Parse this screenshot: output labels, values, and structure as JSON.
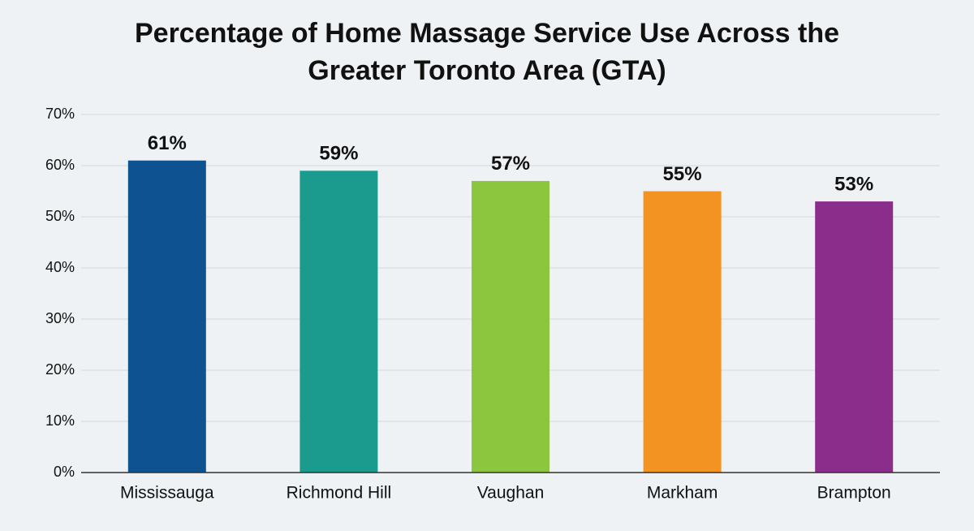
{
  "chart_data": {
    "type": "bar",
    "title": "Percentage of Home Massage Service Use Across the Greater Toronto Area (GTA)",
    "categories": [
      "Mississauga",
      "Richmond Hill",
      "Vaughan",
      "Markham",
      "Brampton"
    ],
    "values": [
      61,
      59,
      57,
      55,
      53
    ],
    "value_labels": [
      "61%",
      "59%",
      "57%",
      "55%",
      "53%"
    ],
    "colors": [
      "#0f5291",
      "#1b9a8e",
      "#8cc63f",
      "#f39322",
      "#8b2d8b"
    ],
    "ylim": [
      0,
      70
    ],
    "yticks": [
      {
        "value": 0,
        "label": "0%"
      },
      {
        "value": 10,
        "label": "10%"
      },
      {
        "value": 20,
        "label": "20%"
      },
      {
        "value": 30,
        "label": "30%"
      },
      {
        "value": 40,
        "label": "40%"
      },
      {
        "value": 50,
        "label": "50%"
      },
      {
        "value": 60,
        "label": "60%"
      },
      {
        "value": 70,
        "label": "70%"
      }
    ],
    "grid": true
  }
}
